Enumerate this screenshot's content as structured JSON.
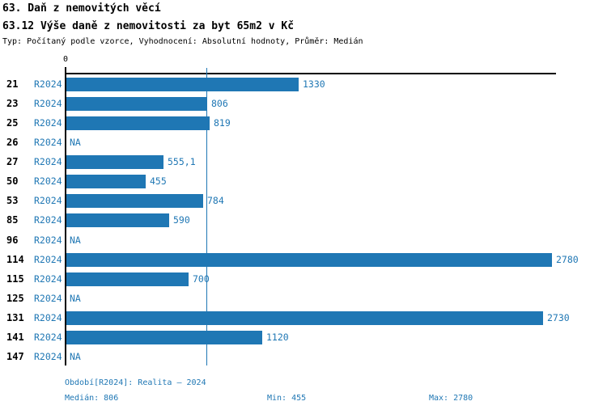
{
  "header": {
    "title_line1": "63. Daň z nemovitých věcí",
    "title_line2": "63.12 Výše daně z nemovitosti za byt 65m2 v Kč",
    "subtitle": "Typ: Počítaný podle vzorce, Vyhodnocení: Absolutní hodnoty, Průměr: Medián"
  },
  "chart_data": {
    "type": "bar",
    "orientation": "horizontal",
    "series_name": "R2024",
    "categories": [
      "21",
      "23",
      "25",
      "26",
      "27",
      "50",
      "53",
      "85",
      "96",
      "114",
      "115",
      "125",
      "131",
      "141",
      "147"
    ],
    "values": [
      1330,
      806,
      819,
      null,
      555.1,
      455,
      784,
      590,
      null,
      2780,
      700,
      null,
      2730,
      1120,
      null
    ],
    "value_labels": [
      "1330",
      "806",
      "819",
      "NA",
      "555,1",
      "455",
      "784",
      "590",
      "NA",
      "2780",
      "700",
      "NA",
      "2730",
      "1120",
      "NA"
    ],
    "na_label": "NA",
    "xlim": [
      0,
      2810
    ],
    "x_zero_tick_label": "0",
    "median_line_value": 806,
    "grid": false,
    "legend": false,
    "bar_color": "#1f77b4",
    "median_line_color": "#1f77b4",
    "axis_color": "#000000"
  },
  "footer": {
    "period": "Období[R2024]: Realita – 2024",
    "median": "Medián: 806",
    "min": "Min: 455",
    "max": "Max: 2780"
  },
  "colors": {
    "accent": "#1f77b4",
    "text": "#000000",
    "background": "#ffffff"
  }
}
